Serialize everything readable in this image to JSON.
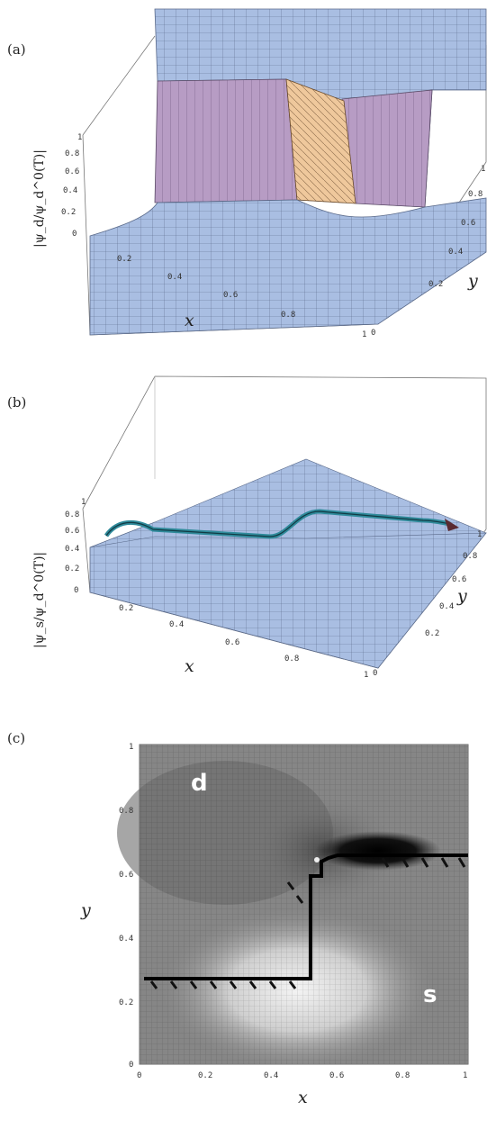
{
  "panels": [
    {
      "label": "(a)",
      "zlabel": "|ψ_d/ψ_d^0(T)|",
      "xlabel": "x",
      "ylabel": "y",
      "z_ticks": [
        "0",
        "0.2",
        "0.4",
        "0.6",
        "0.8",
        "1"
      ],
      "x_ticks": [
        "0.2",
        "0.4",
        "0.6",
        "0.8",
        "1"
      ],
      "y_ticks": [
        "0",
        "0.2",
        "0.4",
        "0.6",
        "0.8",
        "1"
      ],
      "colors": {
        "surface": "#a8bde0",
        "wall": "#b59ac2",
        "accent": "#f0c9a0"
      }
    },
    {
      "label": "(b)",
      "zlabel": "|ψ_s/ψ_d^0(T)|",
      "xlabel": "x",
      "ylabel": "y",
      "z_ticks": [
        "0",
        "0.2",
        "0.4",
        "0.6",
        "0.8",
        "1"
      ],
      "x_ticks": [
        "0.2",
        "0.4",
        "0.6",
        "0.8",
        "1"
      ],
      "y_ticks": [
        "0",
        "0.2",
        "0.4",
        "0.6",
        "0.8",
        "1"
      ],
      "colors": {
        "surface": "#a8bde0",
        "ridge": "#2f8a9a"
      }
    },
    {
      "label": "(c)",
      "xlabel": "x",
      "ylabel": "y",
      "x_ticks": [
        "0",
        "0.2",
        "0.4",
        "0.6",
        "0.8",
        "1"
      ],
      "y_ticks": [
        "0",
        "0.2",
        "0.4",
        "0.6",
        "0.8",
        "1"
      ],
      "region_d": "d",
      "region_s": "s"
    }
  ]
}
